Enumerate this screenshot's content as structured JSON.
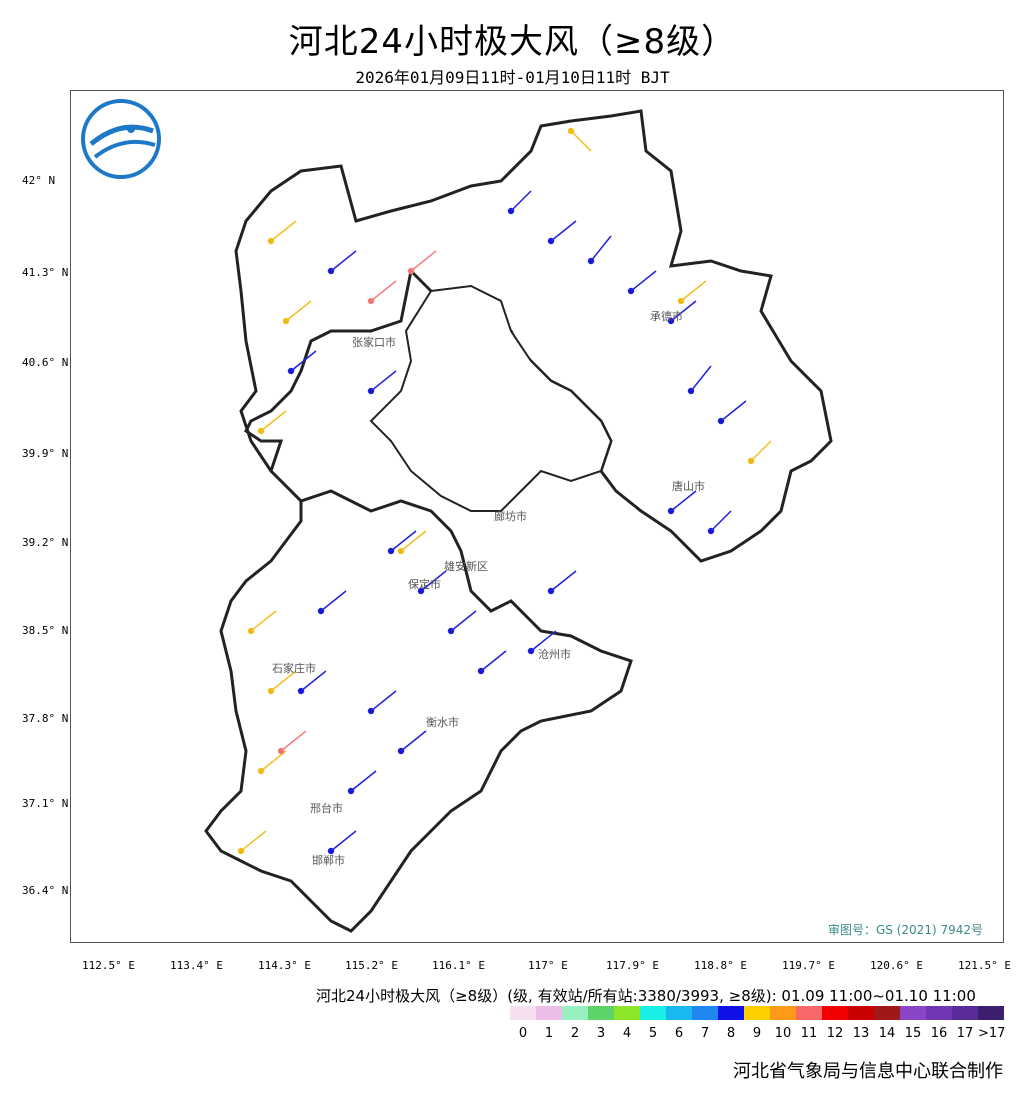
{
  "title": "河北24小时极大风（≥8级）",
  "subtitle": "2026年01月09日11时-01月10日11时 BJT",
  "lat_labels": [
    "42° N",
    "41.3° N",
    "40.6° N",
    "39.9° N",
    "39.2° N",
    "38.5° N",
    "37.8° N",
    "37.1° N",
    "36.4° N"
  ],
  "lon_labels": [
    "112.5° E",
    "113.4° E",
    "114.3° E",
    "115.2° E",
    "116.1° E",
    "117° E",
    "117.9° E",
    "118.8° E",
    "119.7° E",
    "120.6° E",
    "121.5° E"
  ],
  "review_no": "审图号：GS (2021) 7942号",
  "cities": [
    "张家口市",
    "承德市",
    "唐山市",
    "廊坊市",
    "保定市",
    "雄安新区",
    "沧州市",
    "石家庄市",
    "衡水市",
    "邢台市",
    "邯郸市"
  ],
  "legend": {
    "title": "河北24小时极大风（≥8级）(级, 有效站/所有站:3380/3993, ≥8级): 01.09 11:00~01.10 11:00",
    "labels": [
      "0",
      "1",
      "2",
      "3",
      "4",
      "5",
      "6",
      "7",
      "8",
      "9",
      "10",
      "11",
      "12",
      "13",
      "14",
      "15",
      "16",
      "17",
      ">17"
    ],
    "colors": [
      "#f6dff0",
      "#ecbde6",
      "#98f0c0",
      "#5ed36a",
      "#8ee62a",
      "#18f0e6",
      "#1ab8f0",
      "#1e88f0",
      "#1010e8",
      "#ffd000",
      "#ff9a18",
      "#f86868",
      "#f20000",
      "#c80000",
      "#a01818",
      "#8a46c8",
      "#7036b4",
      "#5a2c9a",
      "#3c1e6e"
    ]
  },
  "credit": "河北省气象局与信息中心联合制作"
}
